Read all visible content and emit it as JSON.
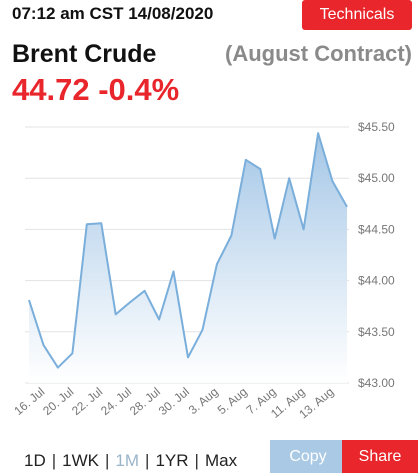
{
  "header": {
    "timestamp": "07:12 am CST 14/08/2020",
    "button": "Technicals"
  },
  "quote": {
    "name": "Brent Crude",
    "contract": "(August Contract)",
    "price": 44.72,
    "change": "-0.4%"
  },
  "chart_data": {
    "type": "area",
    "color": "#7aaedb",
    "grid": true,
    "categories": [
      null,
      "16. Jul",
      null,
      "20. Jul",
      null,
      "22. Jul",
      null,
      "24. Jul",
      null,
      "28. Jul",
      null,
      "30. Jul",
      null,
      "3. Aug",
      null,
      "5. Aug",
      null,
      "7. Aug",
      null,
      "11. Aug",
      null,
      "13. Aug",
      null
    ],
    "values": [
      43.81,
      43.37,
      43.15,
      43.29,
      44.55,
      44.56,
      43.67,
      43.79,
      43.9,
      43.62,
      44.09,
      43.25,
      43.52,
      44.16,
      44.44,
      45.18,
      45.09,
      44.41,
      45.0,
      44.5,
      45.44,
      44.97,
      44.72
    ],
    "ylim": [
      43.0,
      45.5
    ],
    "yticks": [
      {
        "value": 43.0,
        "label": "$43.00"
      },
      {
        "value": 43.5,
        "label": "$43.50"
      },
      {
        "value": 44.0,
        "label": "$44.00"
      },
      {
        "value": 44.5,
        "label": "$44.50"
      },
      {
        "value": 45.0,
        "label": "$45.00"
      },
      {
        "value": 45.5,
        "label": "$45.50"
      }
    ]
  },
  "range_selector": {
    "options": [
      "1D",
      "1WK",
      "1M",
      "1YR",
      "Max"
    ],
    "active": "1M"
  },
  "actions": [
    "Copy",
    "Share"
  ]
}
